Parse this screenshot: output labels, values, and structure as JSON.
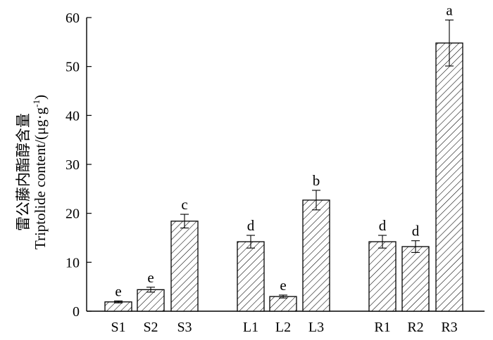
{
  "chart_data": {
    "type": "bar",
    "ylabel_cn": "雷公藤内酯醇含量",
    "ylabel_en": "Triptolide content/(μg·g",
    "ylabel_sup": "-1",
    "ylabel_close": ")",
    "ylim": [
      0,
      60
    ],
    "yticks": [
      0,
      10,
      20,
      30,
      40,
      50,
      60
    ],
    "groups": [
      {
        "categories": [
          "S1",
          "S2",
          "S3"
        ]
      },
      {
        "categories": [
          "L1",
          "L2",
          "L3"
        ]
      },
      {
        "categories": [
          "R1",
          "R2",
          "R3"
        ]
      }
    ],
    "categories": [
      "S1",
      "S2",
      "S3",
      "L1",
      "L2",
      "L3",
      "R1",
      "R2",
      "R3"
    ],
    "values": [
      1.9,
      4.4,
      18.4,
      14.2,
      3.0,
      22.7,
      14.2,
      13.2,
      54.8
    ],
    "errors": [
      0.2,
      0.5,
      1.4,
      1.3,
      0.3,
      2.0,
      1.3,
      1.2,
      4.7
    ],
    "significance": [
      "e",
      "e",
      "c",
      "d",
      "e",
      "b",
      "d",
      "d",
      "a"
    ],
    "grid": false,
    "legend": "none",
    "fill_pattern": "diagonal-hatch"
  }
}
